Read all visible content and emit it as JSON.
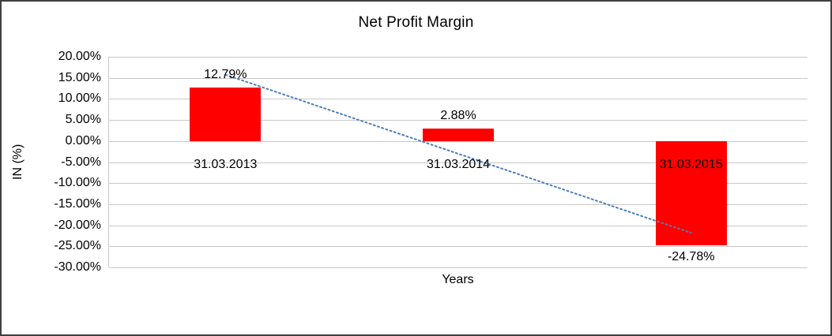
{
  "chart_data": {
    "type": "bar",
    "title": "Net Profit Margin",
    "xlabel": "Years",
    "ylabel": "IN (%)",
    "categories": [
      "31.03.2013",
      "31.03.2014",
      "31.03.2015"
    ],
    "values": [
      12.79,
      2.88,
      -24.78
    ],
    "data_labels": [
      "12.79%",
      "2.88%",
      "-24.78%"
    ],
    "ylim": [
      -30,
      20
    ],
    "ytick_step": 5,
    "ytick_labels": [
      "20.00%",
      "15.00%",
      "10.00%",
      "5.00%",
      "0.00%",
      "-5.00%",
      "-10.00%",
      "-15.00%",
      "-20.00%",
      "-25.00%",
      "-30.00%"
    ],
    "grid": true,
    "legend": "none",
    "bar_color": "#ff0000",
    "gridline_color": "#c8c8c8",
    "trendline": {
      "type": "linear",
      "style": "dotted",
      "color": "#4a7ebb",
      "start_value": 15.75,
      "end_value": -21.8
    }
  }
}
